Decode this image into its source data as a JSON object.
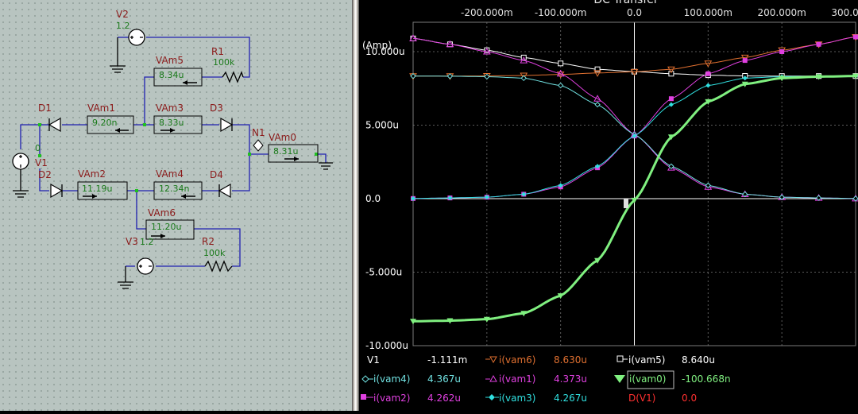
{
  "schematic": {
    "sources": [
      {
        "id": "v2",
        "name": "V2",
        "value": "1.2"
      },
      {
        "id": "v1",
        "name": "V1",
        "value": "0"
      },
      {
        "id": "v3",
        "name": "V3",
        "value": "1.2"
      }
    ],
    "resistors": [
      {
        "id": "r1",
        "name": "R1",
        "value": "100k"
      },
      {
        "id": "r2",
        "name": "R2",
        "value": "100k"
      }
    ],
    "diodes": [
      "D1",
      "D2",
      "D3",
      "D4"
    ],
    "node": "N1",
    "ammeters": [
      {
        "id": "vam5",
        "name": "VAm5",
        "reading": "8.34u"
      },
      {
        "id": "vam1",
        "name": "VAm1",
        "reading": "9.20n"
      },
      {
        "id": "vam3",
        "name": "VAm3",
        "reading": "8.33u"
      },
      {
        "id": "vam0",
        "name": "VAm0",
        "reading": "8.31u"
      },
      {
        "id": "vam2",
        "name": "VAm2",
        "reading": "11.19u"
      },
      {
        "id": "vam4",
        "name": "VAm4",
        "reading": "12.34n"
      },
      {
        "id": "vam6",
        "name": "VAm6",
        "reading": "11.20u"
      }
    ]
  },
  "graph": {
    "title": "DC Transfer",
    "x_ticks": [
      "-200.000m",
      "-100.000m",
      "0.0",
      "100.000m",
      "200.000m",
      "300.000m"
    ],
    "y_unit": "(Amp)",
    "y_ticks": [
      "10.000u",
      "5.000u",
      "0.0",
      "-5.000u",
      "-10.000u"
    ],
    "colors": {
      "vam5": "#ffffff",
      "vam6": "#e07030",
      "vam4": "#70e0e0",
      "vam1": "#e040e0",
      "vam2": "#e040e0",
      "vam3": "#30e0e0",
      "vam0": "#80f080",
      "d_v1": "#ff3030"
    },
    "legend": {
      "sweep_var": "V1",
      "sweep_val": "-1.111m",
      "items": [
        {
          "name": "i(vam6)",
          "value": "8.630u",
          "color": "#e07030",
          "value_color": "#e07030"
        },
        {
          "name": "i(vam5)",
          "value": "8.640u",
          "color": "#ffffff",
          "value_color": "#ffffff"
        },
        {
          "name": "i(vam4)",
          "value": "4.367u",
          "color": "#70e0e0",
          "value_color": "#70e0e0"
        },
        {
          "name": "i(vam1)",
          "value": "4.373u",
          "color": "#e040e0",
          "value_color": "#e040e0"
        },
        {
          "name": "i(vam0)",
          "value": "-100.668n",
          "color": "#80f080",
          "value_color": "#80f080"
        },
        {
          "name": "i(vam2)",
          "value": "4.262u",
          "color": "#e040e0",
          "value_color": "#e040e0"
        },
        {
          "name": "i(vam3)",
          "value": "4.267u",
          "color": "#30e0e0",
          "value_color": "#30e0e0"
        },
        {
          "name": "D(V1)",
          "value": "0.0",
          "color": "#ff3030",
          "value_color": "#ff3030"
        }
      ]
    }
  },
  "chart_data": {
    "type": "line",
    "xlabel": "V1",
    "ylabel": "(Amp)",
    "xlim": [
      -0.3,
      0.3
    ],
    "ylim": [
      -1e-05,
      1.2e-05
    ],
    "x": [
      -0.3,
      -0.25,
      -0.2,
      -0.15,
      -0.1,
      -0.05,
      0,
      0.05,
      0.1,
      0.15,
      0.2,
      0.25,
      0.3
    ],
    "series": [
      {
        "name": "i(vam5)",
        "values": [
          1.09e-05,
          1.05e-05,
          1.01e-05,
          9.6e-06,
          9.2e-06,
          8.8e-06,
          8.64e-06,
          8.5e-06,
          8.4e-06,
          8.35e-06,
          8.34e-06,
          8.34e-06,
          8.34e-06
        ]
      },
      {
        "name": "i(vam6)",
        "values": [
          8.34e-06,
          8.34e-06,
          8.35e-06,
          8.38e-06,
          8.45e-06,
          8.55e-06,
          8.63e-06,
          8.8e-06,
          9.2e-06,
          9.6e-06,
          1.01e-05,
          1.05e-05,
          1.1e-05
        ]
      },
      {
        "name": "i(vam1)",
        "values": [
          1.09e-05,
          1.05e-05,
          1e-05,
          9.4e-06,
          8.5e-06,
          6.8e-06,
          4.37e-06,
          2.1e-06,
          8e-07,
          3e-07,
          1e-07,
          5e-08,
          1e-08
        ]
      },
      {
        "name": "i(vam4)",
        "values": [
          8.34e-06,
          8.33e-06,
          8.3e-06,
          8.2e-06,
          7.7e-06,
          6.4e-06,
          4.37e-06,
          2.2e-06,
          9e-07,
          3e-07,
          1e-07,
          5e-08,
          1e-08
        ]
      },
      {
        "name": "i(vam2)",
        "values": [
          1e-08,
          5e-08,
          1e-07,
          3e-07,
          8e-07,
          2.1e-06,
          4.26e-06,
          6.8e-06,
          8.5e-06,
          9.4e-06,
          1e-05,
          1.05e-05,
          1.1e-05
        ]
      },
      {
        "name": "i(vam3)",
        "values": [
          1e-08,
          5e-08,
          1e-07,
          3e-07,
          9e-07,
          2.2e-06,
          4.27e-06,
          6.4e-06,
          7.7e-06,
          8.2e-06,
          8.3e-06,
          8.33e-06,
          8.34e-06
        ]
      },
      {
        "name": "i(vam0)",
        "values": [
          -8.34e-06,
          -8.3e-06,
          -8.2e-06,
          -7.8e-06,
          -6.6e-06,
          -4.2e-06,
          -1e-07,
          4.2e-06,
          6.6e-06,
          7.8e-06,
          8.2e-06,
          8.3e-06,
          8.34e-06
        ]
      }
    ]
  }
}
